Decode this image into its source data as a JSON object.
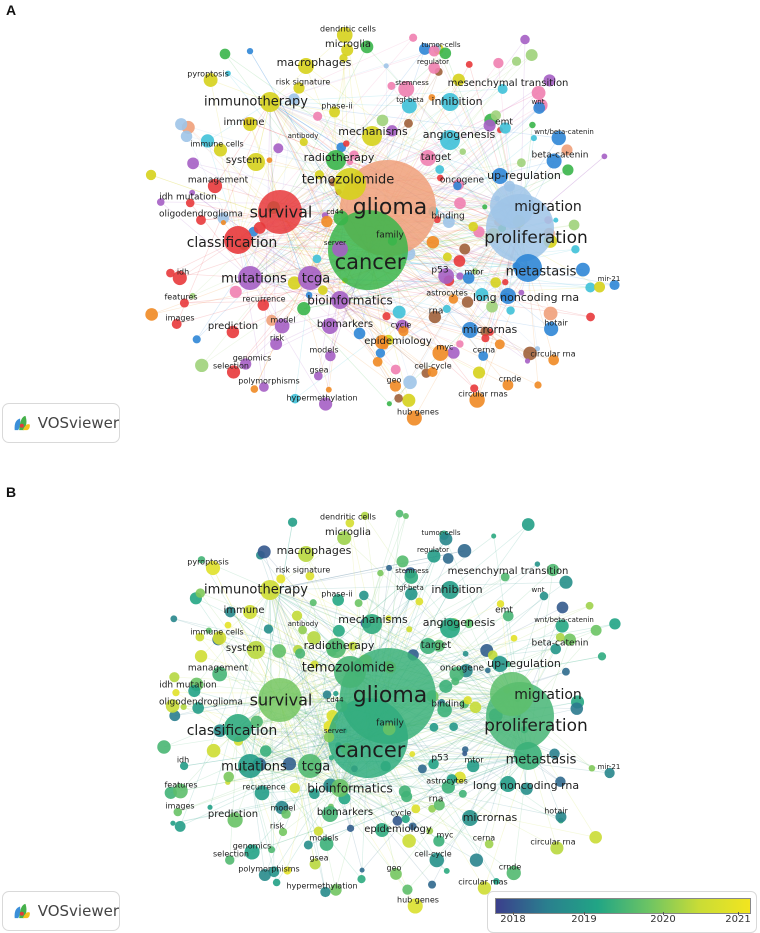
{
  "panels": [
    {
      "letter": "A",
      "mode": "cluster",
      "logo_text": "VOSviewer"
    },
    {
      "letter": "B",
      "mode": "overlay",
      "logo_text": "VOSviewer"
    }
  ],
  "colorbar": {
    "ticks": [
      "2018",
      "2019",
      "2020",
      "2021"
    ],
    "colors": [
      "#3b3f8c",
      "#2a7f8e",
      "#21a585",
      "#6cc464",
      "#c9dc36",
      "#f2e51f"
    ]
  },
  "cluster_colors": {
    "red": "#e8383b",
    "green": "#3ab54a",
    "blue": "#2f86d6",
    "yellow": "#d6d21c",
    "purple": "#a55fc4",
    "lightblue": "#3fc1d8",
    "orange": "#f08a24",
    "brown": "#a0603a",
    "pink": "#f07fb0",
    "lightgreen": "#9fd27a",
    "lightblue2": "#9fc4e8",
    "salmon": "#f0a07a"
  },
  "keywords": [
    {
      "label": "glioma",
      "size": 22,
      "cluster": "salmon",
      "year": 2019.4
    },
    {
      "label": "cancer",
      "size": 21,
      "cluster": "green",
      "year": 2019.3
    },
    {
      "label": "proliferation",
      "size": 17,
      "cluster": "lightblue2",
      "year": 2019.5
    },
    {
      "label": "survival",
      "size": 16,
      "cluster": "red",
      "year": 2019.9
    },
    {
      "label": "migration",
      "size": 14,
      "cluster": "lightblue2",
      "year": 2019.7
    },
    {
      "label": "classification",
      "size": 14,
      "cluster": "red",
      "year": 2019.3
    },
    {
      "label": "temozolomide",
      "size": 13,
      "cluster": "yellow",
      "year": 2019.5
    },
    {
      "label": "metastasis",
      "size": 13,
      "cluster": "blue",
      "year": 2019.4
    },
    {
      "label": "mutations",
      "size": 13,
      "cluster": "purple",
      "year": 2019.0
    },
    {
      "label": "immunotherapy",
      "size": 13,
      "cluster": "yellow",
      "year": 2020.6
    },
    {
      "label": "tcga",
      "size": 13,
      "cluster": "purple",
      "year": 2019.6
    },
    {
      "label": "bioinformatics",
      "size": 12,
      "cluster": "purple",
      "year": 2019.8
    },
    {
      "label": "mechanisms",
      "size": 11,
      "cluster": "yellow",
      "year": 2019.3
    },
    {
      "label": "radiotherapy",
      "size": 11,
      "cluster": "green",
      "year": 2019.6
    },
    {
      "label": "macrophages",
      "size": 11,
      "cluster": "yellow",
      "year": 2020.4
    },
    {
      "label": "angiogenesis",
      "size": 11,
      "cluster": "lightblue",
      "year": 2019.2
    },
    {
      "label": "inhibition",
      "size": 11,
      "cluster": "lightblue",
      "year": 2019.0
    },
    {
      "label": "long noncoding rna",
      "size": 11,
      "cluster": "blue",
      "year": 2019.0
    },
    {
      "label": "micrornas",
      "size": 11,
      "cluster": "blue",
      "year": 2018.8
    },
    {
      "label": "up-regulation",
      "size": 11,
      "cluster": "blue",
      "year": 2018.9
    },
    {
      "label": "target",
      "size": 10,
      "cluster": "pink",
      "year": 2019.4
    },
    {
      "label": "system",
      "size": 10,
      "cluster": "yellow",
      "year": 2020.4
    },
    {
      "label": "immune",
      "size": 10,
      "cluster": "yellow",
      "year": 2020.6
    },
    {
      "label": "biomarkers",
      "size": 10,
      "cluster": "purple",
      "year": 2019.5
    },
    {
      "label": "epidemiology",
      "size": 10,
      "cluster": "orange",
      "year": 2019.3
    },
    {
      "label": "prediction",
      "size": 10,
      "cluster": "red",
      "year": 2019.8
    },
    {
      "label": "mesenchymal transition",
      "size": 10,
      "cluster": "lightblue",
      "year": 2019.6
    },
    {
      "label": "microglia",
      "size": 10,
      "cluster": "yellow",
      "year": 2020.2
    },
    {
      "label": "beta-catenin",
      "size": 9,
      "cluster": "blue",
      "year": 2018.9
    },
    {
      "label": "emt",
      "size": 9,
      "cluster": "lightblue",
      "year": 2019.5
    },
    {
      "label": "management",
      "size": 9,
      "cluster": "red",
      "year": 2019.5
    },
    {
      "label": "idh mutation",
      "size": 9,
      "cluster": "red",
      "year": 2019.1
    },
    {
      "label": "oligodendroglioma",
      "size": 9,
      "cluster": "red",
      "year": 2019.0
    },
    {
      "label": "family",
      "size": 9,
      "cluster": "green",
      "year": 2019.8
    },
    {
      "label": "binding",
      "size": 9,
      "cluster": "lightblue2",
      "year": 2019.4
    },
    {
      "label": "oncogene",
      "size": 9,
      "cluster": "blue",
      "year": 2019.5
    },
    {
      "label": "p53",
      "size": 9,
      "cluster": "purple",
      "year": 2019.1
    },
    {
      "label": "mtor",
      "size": 8,
      "cluster": "blue",
      "year": 2019.0
    },
    {
      "label": "astrocytes",
      "size": 8,
      "cluster": "orange",
      "year": 2019.4
    },
    {
      "label": "rna",
      "size": 9,
      "cluster": "brown",
      "year": 2019.7
    },
    {
      "label": "cycle",
      "size": 8,
      "cluster": "orange",
      "year": 2019.2
    },
    {
      "label": "myc",
      "size": 8,
      "cluster": "orange",
      "year": 2019.4
    },
    {
      "label": "cerna",
      "size": 8,
      "cluster": "blue",
      "year": 2020.2
    },
    {
      "label": "circular rna",
      "size": 8,
      "cluster": "orange",
      "year": 2020.4
    },
    {
      "label": "hotair",
      "size": 8,
      "cluster": "blue",
      "year": 2018.6
    },
    {
      "label": "crnde",
      "size": 8,
      "cluster": "orange",
      "year": 2019.6
    },
    {
      "label": "circular rnas",
      "size": 8,
      "cluster": "orange",
      "year": 2020.6
    },
    {
      "label": "hub genes",
      "size": 8,
      "cluster": "orange",
      "year": 2020.8
    },
    {
      "label": "cell-cycle",
      "size": 8,
      "cluster": "orange",
      "year": 2018.8
    },
    {
      "label": "geo",
      "size": 8,
      "cluster": "orange",
      "year": 2019.9
    },
    {
      "label": "hypermethylation",
      "size": 8,
      "cluster": "purple",
      "year": 2018.7
    },
    {
      "label": "polymorphisms",
      "size": 8,
      "cluster": "purple",
      "year": 2018.7
    },
    {
      "label": "gsea",
      "size": 8,
      "cluster": "purple",
      "year": 2020.4
    },
    {
      "label": "genomics",
      "size": 8,
      "cluster": "purple",
      "year": 2019.1
    },
    {
      "label": "selection",
      "size": 8,
      "cluster": "red",
      "year": 2019.6
    },
    {
      "label": "models",
      "size": 8,
      "cluster": "purple",
      "year": 2019.4
    },
    {
      "label": "risk",
      "size": 8,
      "cluster": "purple",
      "year": 2019.9
    },
    {
      "label": "model",
      "size": 8,
      "cluster": "purple",
      "year": 2019.8
    },
    {
      "label": "recurrence",
      "size": 8,
      "cluster": "red",
      "year": 2019.0
    },
    {
      "label": "images",
      "size": 8,
      "cluster": "red",
      "year": 2019.8
    },
    {
      "label": "features",
      "size": 8,
      "cluster": "red",
      "year": 2019.7
    },
    {
      "label": "idh",
      "size": 8,
      "cluster": "red",
      "year": 2019.0
    },
    {
      "label": "server",
      "size": 7,
      "cluster": "purple",
      "year": 2020.0
    },
    {
      "label": "cd44",
      "size": 7,
      "cluster": "green",
      "year": 2019.4
    },
    {
      "label": "immune cells",
      "size": 8,
      "cluster": "yellow",
      "year": 2020.7
    },
    {
      "label": "antibody",
      "size": 7,
      "cluster": "yellow",
      "year": 2020.1
    },
    {
      "label": "phase-ii",
      "size": 8,
      "cluster": "yellow",
      "year": 2019.2
    },
    {
      "label": "risk signature",
      "size": 8,
      "cluster": "yellow",
      "year": 2020.8
    },
    {
      "label": "pyroptosis",
      "size": 8,
      "cluster": "yellow",
      "year": 2020.9
    },
    {
      "label": "dendritic cells",
      "size": 8,
      "cluster": "yellow",
      "year": 2020.7
    },
    {
      "label": "tumor-cells",
      "size": 7,
      "cluster": "pink",
      "year": 2018.6
    },
    {
      "label": "regulator",
      "size": 7,
      "cluster": "pink",
      "year": 2019.0
    },
    {
      "label": "stemness",
      "size": 7,
      "cluster": "pink",
      "year": 2019.3
    },
    {
      "label": "tgf-beta",
      "size": 7,
      "cluster": "lightblue",
      "year": 2018.9
    },
    {
      "label": "wnt",
      "size": 7,
      "cluster": "blue",
      "year": 2018.8
    },
    {
      "label": "wnt/beta-catenin",
      "size": 7,
      "cluster": "blue",
      "year": 2019.2
    },
    {
      "label": "mir-21",
      "size": 7,
      "cluster": "blue",
      "year": 2018.6
    }
  ]
}
